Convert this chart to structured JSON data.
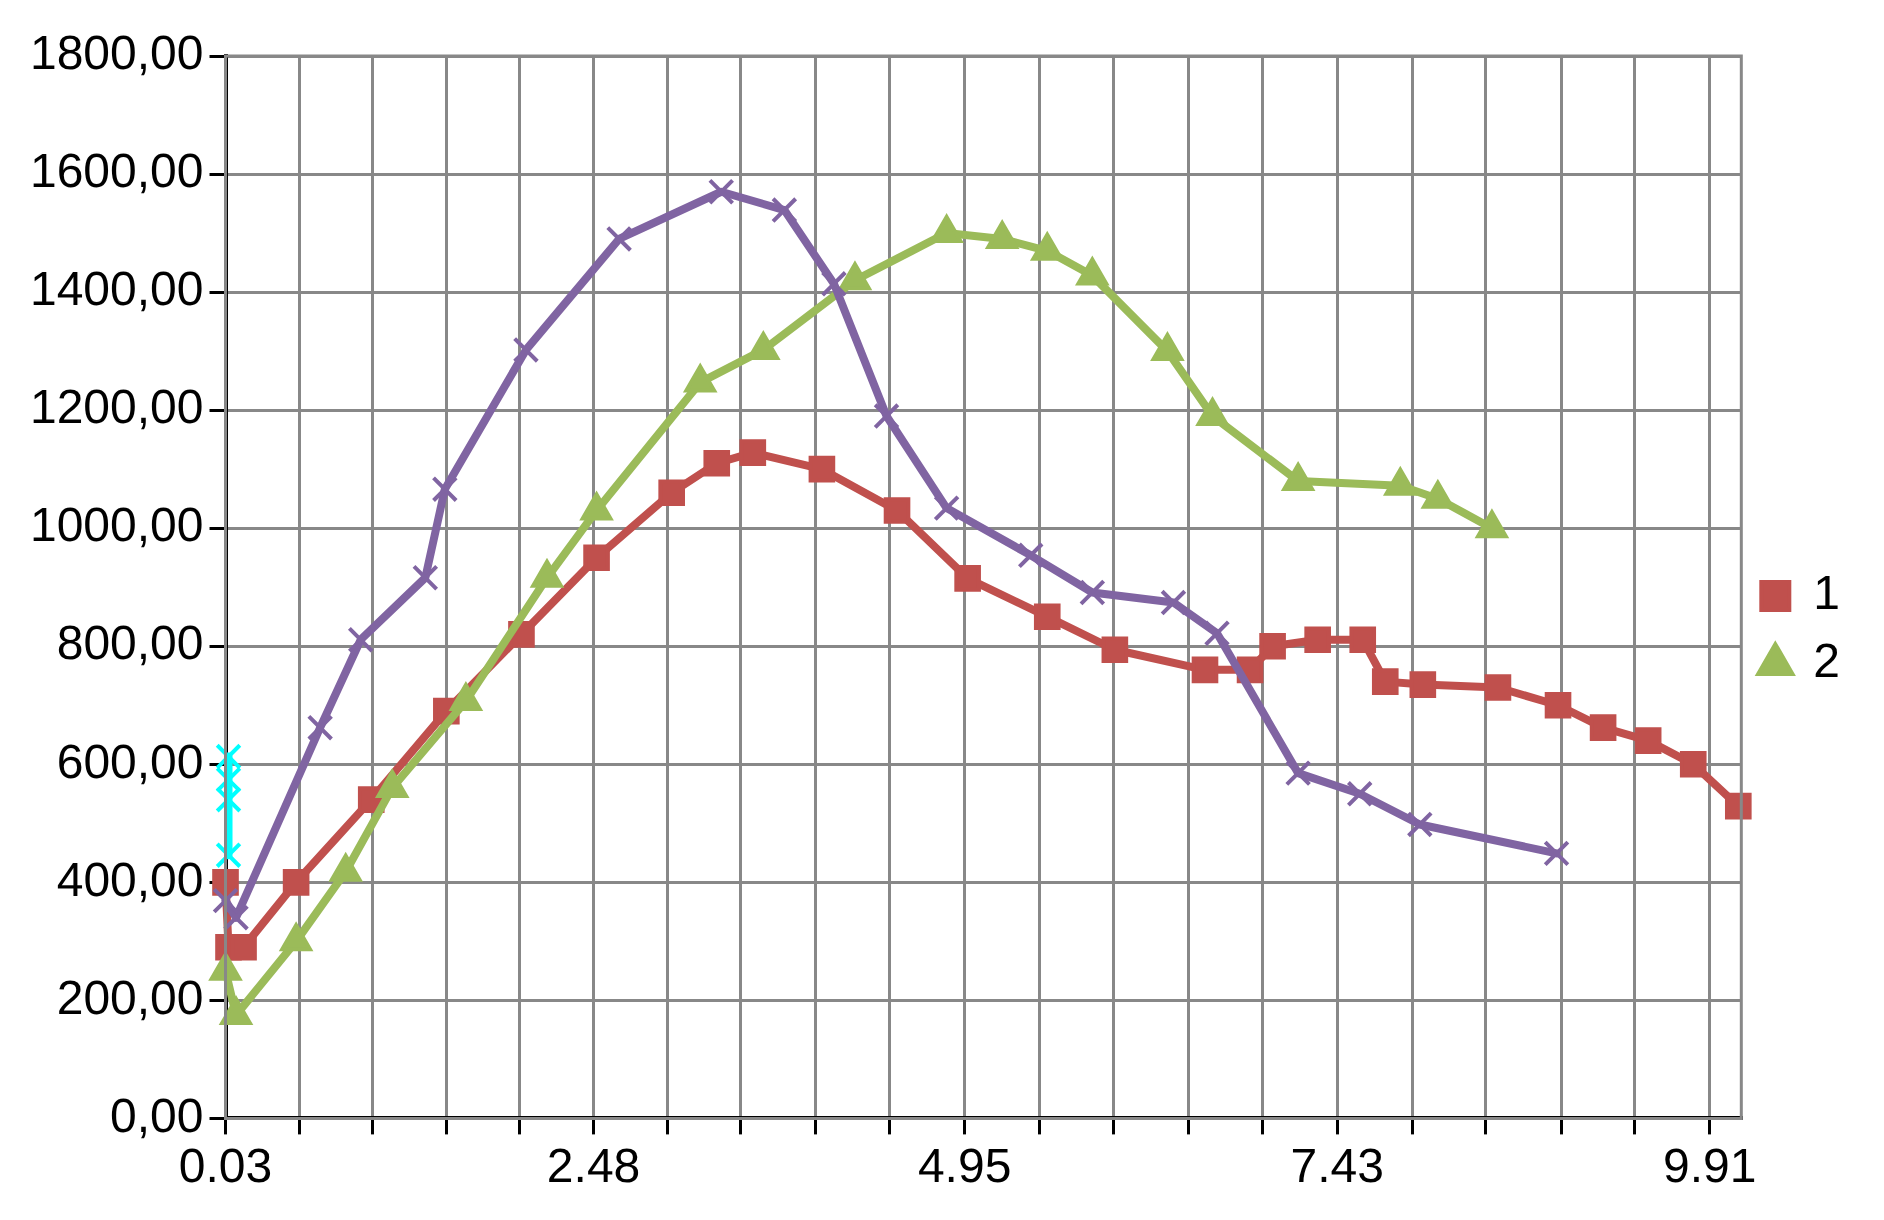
{
  "chart_data": {
    "type": "line",
    "xlim": [
      0.03,
      10.12
    ],
    "xticks": [
      0.03,
      {
        "value": 0.52,
        "label": null
      },
      {
        "value": 1.01,
        "label": null
      },
      {
        "value": 1.5,
        "label": null
      },
      {
        "value": 1.99,
        "label": null
      },
      2.48,
      {
        "value": 2.97,
        "label": null
      },
      {
        "value": 3.46,
        "label": null
      },
      {
        "value": 3.96,
        "label": null
      },
      {
        "value": 4.45,
        "label": null
      },
      4.95,
      {
        "value": 5.45,
        "label": null
      },
      {
        "value": 5.94,
        "label": null
      },
      {
        "value": 6.44,
        "label": null
      },
      {
        "value": 6.93,
        "label": null
      },
      7.43,
      {
        "value": 7.93,
        "label": null
      },
      {
        "value": 8.42,
        "label": null
      },
      {
        "value": 8.92,
        "label": null
      },
      {
        "value": 9.41,
        "label": null
      },
      9.91
    ],
    "ylim": [
      0,
      1800
    ],
    "yticks": [
      {
        "value": 0,
        "label": "0,00"
      },
      {
        "value": 200,
        "label": "200,00"
      },
      {
        "value": 400,
        "label": "400,00"
      },
      {
        "value": 600,
        "label": "600,00"
      },
      {
        "value": 800,
        "label": "800,00"
      },
      {
        "value": 1000,
        "label": "1000,00"
      },
      {
        "value": 1200,
        "label": "1200,00"
      },
      {
        "value": 1400,
        "label": "1400,00"
      },
      {
        "value": 1600,
        "label": "1600,00"
      },
      {
        "value": 1800,
        "label": "1800,00"
      }
    ],
    "grid": true,
    "legend": "right",
    "series": [
      {
        "name": "1",
        "color": "#c0504d",
        "marker": "square",
        "x": [
          0.03,
          0.05,
          0.15,
          0.5,
          1.0,
          1.5,
          2.0,
          2.5,
          3.0,
          3.3,
          3.54,
          4.0,
          4.5,
          4.97,
          5.5,
          5.95,
          6.55,
          6.85,
          7.0,
          7.3,
          7.6,
          7.75,
          8.0,
          8.5,
          8.9,
          9.2,
          9.5,
          9.8,
          10.1
        ],
        "values": [
          400,
          290,
          290,
          400,
          540,
          690,
          820,
          950,
          1060,
          1110,
          1128,
          1100,
          1030,
          915,
          850,
          794,
          760,
          760,
          800,
          811,
          811,
          740,
          735,
          730,
          700,
          662,
          640,
          600,
          529
        ]
      },
      {
        "name": "2",
        "color": "#9bbb59",
        "marker": "triangle",
        "x": [
          0.03,
          0.1,
          0.5,
          0.83,
          1.14,
          1.63,
          2.17,
          2.5,
          3.19,
          3.61,
          4.22,
          4.83,
          5.2,
          5.5,
          5.8,
          6.3,
          6.6,
          7.17,
          7.85,
          8.1,
          8.46
        ],
        "values": [
          250,
          175,
          300,
          418,
          560,
          707,
          916,
          1030,
          1247,
          1302,
          1420,
          1500,
          1490,
          1470,
          1428,
          1300,
          1190,
          1080,
          1072,
          1050,
          1000
        ]
      },
      {
        "color": "#8064a2",
        "marker": "cross",
        "x": [
          0.03,
          0.1,
          0.66,
          0.93,
          1.36,
          1.49,
          2.03,
          2.65,
          3.33,
          3.75,
          4.08,
          4.43,
          4.83,
          5.39,
          5.8,
          6.34,
          6.63,
          7.17,
          7.58,
          7.98,
          8.89
        ],
        "values": [
          369,
          340,
          662,
          811,
          916,
          1066,
          1302,
          1490,
          1570,
          1539,
          1414,
          1190,
          1034,
          954,
          891,
          874,
          822,
          585,
          550,
          498,
          449
        ]
      },
      {
        "color": "#00ffff",
        "marker": "cross",
        "x": [
          0.05,
          0.05,
          0.05,
          0.05
        ],
        "values": [
          613,
          574,
          540,
          446
        ]
      }
    ]
  }
}
